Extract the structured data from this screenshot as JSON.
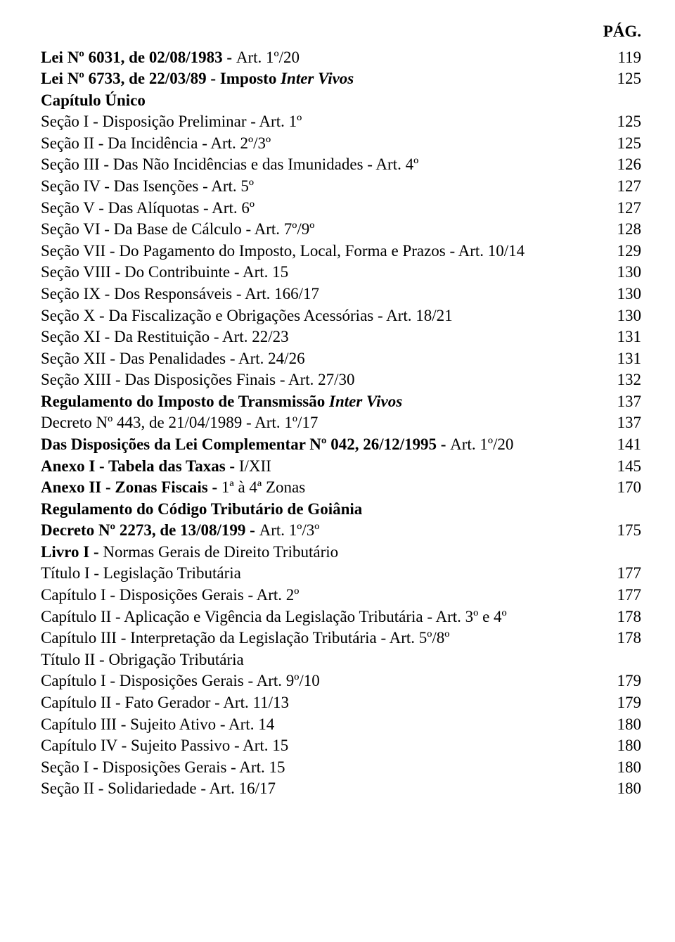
{
  "header": "PÁG.",
  "lines": [
    {
      "parts": [
        {
          "t": "Lei Nº 6031, de 02/08/1983 - ",
          "b": true
        },
        {
          "t": "Art. 1º/20"
        }
      ],
      "page": "119"
    },
    {
      "parts": [
        {
          "t": "Lei Nº 6733, de 22/03/89 - Imposto ",
          "b": true
        },
        {
          "t": "Inter Vivos",
          "b": true,
          "i": true
        }
      ],
      "page": "125"
    },
    {
      "parts": [
        {
          "t": "Capítulo Único",
          "b": true
        }
      ],
      "no_dots": true
    },
    {
      "parts": [
        {
          "t": "Seção I - Disposição Preliminar - Art. 1º"
        }
      ],
      "page": "125"
    },
    {
      "parts": [
        {
          "t": "Seção II - Da Incidência - Art. 2º/3º"
        }
      ],
      "page": "125"
    },
    {
      "parts": [
        {
          "t": "Seção III - Das Não Incidências e das Imunidades - Art. 4º"
        }
      ],
      "page": "126"
    },
    {
      "parts": [
        {
          "t": "Seção IV - Das Isenções - Art. 5º"
        }
      ],
      "page": "127"
    },
    {
      "parts": [
        {
          "t": "Seção V - Das Alíquotas - Art. 6º"
        }
      ],
      "page": "127"
    },
    {
      "parts": [
        {
          "t": "Seção VI - Da Base de Cálculo - Art. 7º/9º"
        }
      ],
      "page": "128"
    },
    {
      "parts": [
        {
          "t": "Seção VII - Do Pagamento do Imposto, Local, Forma e Prazos - Art. 10/14"
        }
      ],
      "page": "129"
    },
    {
      "parts": [
        {
          "t": "Seção VIII - Do Contribuinte - Art. 15"
        }
      ],
      "page": "130"
    },
    {
      "parts": [
        {
          "t": "Seção IX - Dos Responsáveis - Art. 166/17"
        }
      ],
      "page": "130"
    },
    {
      "parts": [
        {
          "t": "Seção X - Da Fiscalização e Obrigações Acessórias - Art. 18/21"
        }
      ],
      "page": "130"
    },
    {
      "parts": [
        {
          "t": "Seção XI - Da Restituição - Art. 22/23"
        }
      ],
      "page": "131"
    },
    {
      "parts": [
        {
          "t": "Seção XII - Das Penalidades - Art. 24/26"
        }
      ],
      "page": "131"
    },
    {
      "parts": [
        {
          "t": "Seção XIII - Das Disposições Finais - Art. 27/30"
        }
      ],
      "page": "132"
    },
    {
      "parts": [
        {
          "t": "Regulamento do Imposto de Transmissão ",
          "b": true
        },
        {
          "t": "Inter Vivos",
          "b": true,
          "i": true
        }
      ],
      "page": "137"
    },
    {
      "parts": [
        {
          "t": "Decreto Nº 443, de 21/04/1989 - Art. 1º/17"
        }
      ],
      "page": "137"
    },
    {
      "parts": [
        {
          "t": "Das Disposições da Lei Complementar Nº 042, 26/12/1995 - ",
          "b": true
        },
        {
          "t": "Art. 1º/20"
        }
      ],
      "page": "141",
      "tight": true
    },
    {
      "parts": [
        {
          "t": "Anexo I - Tabela das Taxas - ",
          "b": true
        },
        {
          "t": "I/XII"
        }
      ],
      "page": "145"
    },
    {
      "parts": [
        {
          "t": "Anexo II - Zonas Fiscais - ",
          "b": true
        },
        {
          "t": "1ª à 4ª Zonas"
        }
      ],
      "page": "170"
    },
    {
      "parts": [
        {
          "t": "Regulamento do Código Tributário de Goiânia",
          "b": true
        }
      ],
      "no_dots": true
    },
    {
      "parts": [
        {
          "t": "Decreto Nº 2273, de 13/08/199 - ",
          "b": true
        },
        {
          "t": "Art. 1º/3º"
        }
      ],
      "page": "175"
    },
    {
      "parts": [
        {
          "t": "Livro I - ",
          "b": true
        },
        {
          "t": "Normas Gerais de Direito Tributário"
        }
      ],
      "no_dots": true
    },
    {
      "parts": [
        {
          "t": "Título I - Legislação Tributária"
        }
      ],
      "page": "177"
    },
    {
      "parts": [
        {
          "t": "Capítulo I - Disposições Gerais - Art. 2º"
        }
      ],
      "page": "177"
    },
    {
      "parts": [
        {
          "t": "Capítulo II - Aplicação e Vigência da Legislação Tributária - Art. 3º e 4º"
        }
      ],
      "page": "178"
    },
    {
      "parts": [
        {
          "t": "Capítulo III - Interpretação da Legislação Tributária - Art. 5º/8º"
        }
      ],
      "page": "178"
    },
    {
      "parts": [
        {
          "t": "Título II - Obrigação Tributária"
        }
      ],
      "no_dots": true
    },
    {
      "parts": [
        {
          "t": "Capítulo I - Disposições Gerais - Art. 9º/10"
        }
      ],
      "page": "179"
    },
    {
      "parts": [
        {
          "t": "Capítulo II - Fato Gerador - Art. 11/13"
        }
      ],
      "page": "179"
    },
    {
      "parts": [
        {
          "t": "Capítulo III - Sujeito Ativo - Art. 14"
        }
      ],
      "page": "180"
    },
    {
      "parts": [
        {
          "t": "Capítulo IV - Sujeito Passivo - Art. 15"
        }
      ],
      "page": "180"
    },
    {
      "parts": [
        {
          "t": "Seção I - Disposições Gerais - Art. 15"
        }
      ],
      "page": "180"
    },
    {
      "parts": [
        {
          "t": "Seção II - Solidariedade - Art. 16/17"
        }
      ],
      "page": "180"
    }
  ]
}
